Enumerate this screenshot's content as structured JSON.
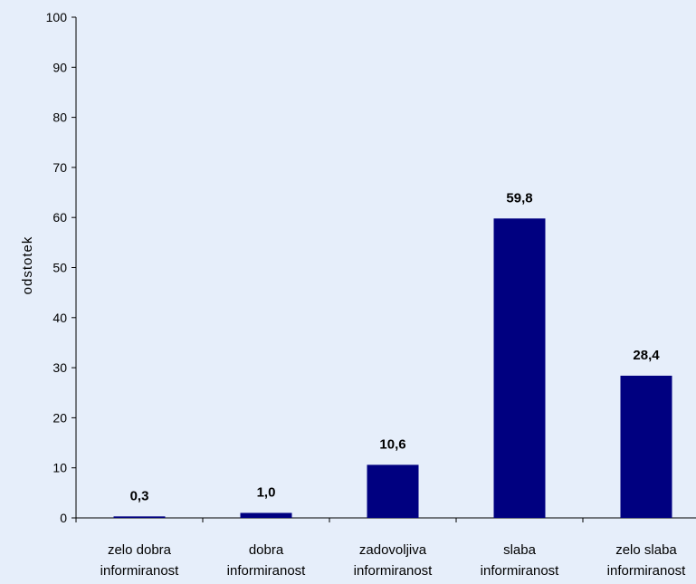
{
  "chart_data": {
    "type": "bar",
    "categories": [
      [
        "zelo dobra",
        "informiranost"
      ],
      [
        "dobra",
        "informiranost"
      ],
      [
        "zadovoljiva",
        "informiranost"
      ],
      [
        "slaba",
        "informiranost"
      ],
      [
        "zelo slaba",
        "informiranost"
      ]
    ],
    "values": [
      0.3,
      1.0,
      10.6,
      59.8,
      28.4
    ],
    "value_labels": [
      "0,3",
      "1,0",
      "10,6",
      "59,8",
      "28,4"
    ],
    "ylabel": "odstotek",
    "ylim": [
      0,
      100
    ],
    "yticks": [
      0,
      10,
      20,
      30,
      40,
      50,
      60,
      70,
      80,
      90,
      100
    ],
    "bar_color": "#000080",
    "background": "#e6eefa",
    "grid": false,
    "legend": "none"
  }
}
